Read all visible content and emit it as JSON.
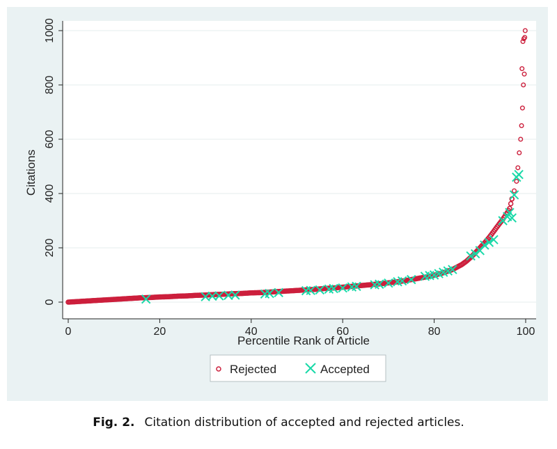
{
  "caption": {
    "label": "Fig. 2.",
    "text": "Citation distribution of accepted and rejected articles."
  },
  "colors": {
    "rejected": "#cc1f3c",
    "accepted": "#19d9a8",
    "panel": "#eaf2f3",
    "grid": "#e4ecee"
  },
  "chart_data": {
    "type": "scatter",
    "xlabel": "Percentile Rank of Article",
    "ylabel": "Citations",
    "xlim": [
      0,
      100
    ],
    "ylim": [
      0,
      1000
    ],
    "xticks": [
      "0",
      "20",
      "40",
      "60",
      "80",
      "100"
    ],
    "yticks": [
      "0",
      "200",
      "400",
      "600",
      "800",
      "1000"
    ],
    "grid": true,
    "legend_position": "bottom",
    "series": [
      {
        "name": "Rejected",
        "marker": "circle",
        "x": [
          0,
          2,
          4,
          6,
          8,
          10,
          12,
          14,
          16,
          18,
          20,
          22,
          24,
          26,
          28,
          30,
          32,
          34,
          36,
          38,
          40,
          42,
          44,
          46,
          48,
          50,
          52,
          54,
          56,
          58,
          60,
          62,
          64,
          66,
          68,
          70,
          72,
          74,
          76,
          78,
          80,
          82,
          84,
          86,
          87,
          88,
          89,
          90,
          91,
          92,
          93,
          94,
          95,
          96,
          96.5,
          97,
          97.5,
          98,
          98.3,
          98.6,
          98.9,
          99.1,
          99.3,
          99.5,
          99.7,
          99.9
        ],
        "y": [
          0,
          2,
          4,
          6,
          8,
          10,
          12,
          14,
          16,
          17,
          19,
          20,
          22,
          23,
          25,
          26,
          28,
          29,
          31,
          32,
          34,
          35,
          37,
          39,
          41,
          43,
          45,
          47,
          50,
          52,
          55,
          58,
          61,
          64,
          67,
          71,
          75,
          80,
          86,
          92,
          99,
          108,
          120,
          138,
          150,
          165,
          182,
          200,
          218,
          238,
          260,
          283,
          305,
          330,
          345,
          380,
          410,
          445,
          495,
          550,
          600,
          650,
          715,
          800,
          840,
          1000
        ]
      },
      {
        "name": "Accepted",
        "marker": "x",
        "x": [
          17,
          30,
          31.5,
          33,
          35,
          36.5,
          43,
          44,
          46,
          52,
          53,
          55,
          57,
          58,
          60,
          62,
          63,
          67,
          68,
          70,
          72,
          73,
          75,
          78,
          79,
          80,
          81,
          82,
          83,
          84,
          88,
          89,
          90,
          91,
          92,
          93,
          95,
          96,
          96.5,
          97,
          97.5,
          98,
          98.5
        ],
        "y": [
          11,
          20,
          22,
          23,
          25,
          26,
          30,
          32,
          35,
          42,
          43,
          45,
          48,
          50,
          52,
          56,
          58,
          64,
          66,
          70,
          75,
          78,
          83,
          95,
          98,
          100,
          105,
          110,
          115,
          120,
          170,
          178,
          190,
          210,
          220,
          230,
          300,
          315,
          330,
          310,
          395,
          460,
          470
        ]
      }
    ]
  }
}
